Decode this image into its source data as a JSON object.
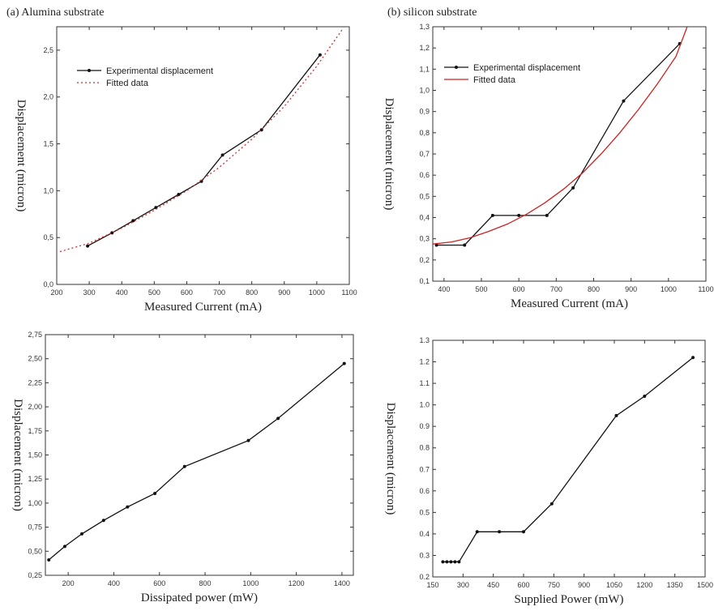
{
  "panel_titles": {
    "a": "(a) Alumina substrate",
    "b": "(b) silicon substrate"
  },
  "chart_data": [
    {
      "id": "a-top",
      "type": "line",
      "xlabel": "Measured Current (mA)",
      "ylabel": "Displacement (micron)",
      "xlim": [
        200,
        1100
      ],
      "ylim": [
        0.0,
        2.75
      ],
      "xticks": [
        200,
        300,
        400,
        500,
        600,
        700,
        800,
        900,
        1000,
        1100
      ],
      "xtick_labels": [
        "200",
        "300",
        "400",
        "500",
        "600",
        "700",
        "800",
        "900",
        "1000",
        "1100"
      ],
      "yticks": [
        0.0,
        0.5,
        1.0,
        1.5,
        2.0,
        2.5
      ],
      "ytick_labels": [
        "0,0",
        "0,5",
        "1,0",
        "1,5",
        "2,0",
        "2,5"
      ],
      "grid": false,
      "legend_position": "top-left",
      "series": [
        {
          "name": "Experimental displacement",
          "style": "solid-marker",
          "color": "#111111",
          "x": [
            295,
            370,
            435,
            505,
            575,
            645,
            710,
            830,
            1010
          ],
          "y": [
            0.41,
            0.55,
            0.68,
            0.82,
            0.96,
            1.1,
            1.38,
            1.65,
            2.45
          ]
        },
        {
          "name": "Fitted data",
          "style": "dotted",
          "color": "#cc3333",
          "x": [
            210,
            300,
            400,
            500,
            600,
            700,
            800,
            900,
            1000,
            1080
          ],
          "y": [
            0.35,
            0.44,
            0.6,
            0.79,
            1.0,
            1.25,
            1.55,
            1.9,
            2.33,
            2.73
          ]
        }
      ]
    },
    {
      "id": "b-top",
      "type": "line",
      "xlabel": "Measured Current (mA)",
      "ylabel": "Displacement (micron)",
      "xlim": [
        370,
        1100
      ],
      "ylim": [
        0.1,
        1.3
      ],
      "xticks": [
        400,
        500,
        600,
        700,
        800,
        900,
        1000,
        1100
      ],
      "xtick_labels": [
        "400",
        "500",
        "600",
        "700",
        "800",
        "900",
        "1000",
        "1100"
      ],
      "yticks": [
        0.1,
        0.2,
        0.3,
        0.4,
        0.5,
        0.6,
        0.7,
        0.8,
        0.9,
        1.0,
        1.1,
        1.2,
        1.3
      ],
      "ytick_labels": [
        "0,1",
        "0,2",
        "0,3",
        "0,4",
        "0,5",
        "0,6",
        "0,7",
        "0,8",
        "0,9",
        "1,0",
        "1,1",
        "1,2",
        "1,3"
      ],
      "grid": false,
      "legend_position": "top-left",
      "series": [
        {
          "name": "Experimental displacement",
          "style": "solid-marker",
          "color": "#111111",
          "x": [
            380,
            455,
            530,
            600,
            675,
            745,
            880,
            1030
          ],
          "y": [
            0.27,
            0.27,
            0.41,
            0.41,
            0.41,
            0.54,
            0.95,
            1.22
          ]
        },
        {
          "name": "Fitted data",
          "style": "solid",
          "color": "#cc2222",
          "x": [
            370,
            420,
            470,
            520,
            570,
            620,
            670,
            720,
            770,
            820,
            870,
            920,
            970,
            1020,
            1050
          ],
          "y": [
            0.275,
            0.285,
            0.305,
            0.335,
            0.37,
            0.415,
            0.47,
            0.535,
            0.61,
            0.7,
            0.8,
            0.91,
            1.03,
            1.16,
            1.3
          ]
        }
      ]
    },
    {
      "id": "a-bottom",
      "type": "line",
      "xlabel": "Dissipated power (mW)",
      "ylabel": "Displacement (micron)",
      "xlim": [
        100,
        1450
      ],
      "ylim": [
        0.25,
        2.75
      ],
      "xticks": [
        200,
        400,
        600,
        800,
        1000,
        1200,
        1400
      ],
      "xtick_labels": [
        "200",
        "400",
        "600",
        "800",
        "1000",
        "1200",
        "1400"
      ],
      "yticks": [
        0.25,
        0.5,
        0.75,
        1.0,
        1.25,
        1.5,
        1.75,
        2.0,
        2.25,
        2.5,
        2.75
      ],
      "ytick_labels": [
        "0,25",
        "0,50",
        "0,75",
        "1,00",
        "1,25",
        "1,50",
        "1,75",
        "2,00",
        "2,25",
        "2,50",
        "2,75"
      ],
      "grid": false,
      "series": [
        {
          "color": "#111111",
          "style": "solid-marker",
          "x": [
            115,
            185,
            260,
            355,
            460,
            580,
            710,
            990,
            1120,
            1410
          ],
          "y": [
            0.41,
            0.55,
            0.68,
            0.82,
            0.96,
            1.1,
            1.38,
            1.65,
            1.88,
            2.45
          ]
        }
      ]
    },
    {
      "id": "b-bottom",
      "type": "line",
      "xlabel": "Supplied Power (mW)",
      "ylabel": "Displacement (micron)",
      "xlim": [
        150,
        1500
      ],
      "ylim": [
        0.2,
        1.3
      ],
      "xticks": [
        150,
        300,
        450,
        600,
        750,
        900,
        1050,
        1200,
        1350,
        1500
      ],
      "xtick_labels": [
        "150",
        "300",
        "450",
        "600",
        "750",
        "900",
        "1050",
        "1200",
        "1350",
        "1500"
      ],
      "yticks": [
        0.2,
        0.3,
        0.4,
        0.5,
        0.6,
        0.7,
        0.8,
        0.9,
        1.0,
        1.1,
        1.2,
        1.3
      ],
      "ytick_labels": [
        "0.2",
        "0.3",
        "0.4",
        "0.5",
        "0.6",
        "0.7",
        "0.8",
        "0.9",
        "1.0",
        "1.1",
        "1.2",
        "1.3"
      ],
      "grid": false,
      "series": [
        {
          "color": "#111111",
          "style": "solid-marker",
          "x": [
            200,
            220,
            240,
            260,
            280,
            370,
            480,
            600,
            740,
            1060,
            1200,
            1440
          ],
          "y": [
            0.27,
            0.27,
            0.27,
            0.27,
            0.27,
            0.41,
            0.41,
            0.41,
            0.54,
            0.95,
            1.04,
            1.22
          ]
        }
      ]
    }
  ]
}
